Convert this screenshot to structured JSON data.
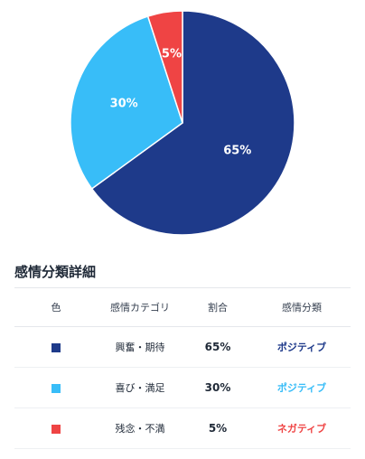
{
  "chart_data": {
    "type": "pie",
    "title": "",
    "slices": [
      {
        "label": "65%",
        "value": 65,
        "color": "#1e3a8a"
      },
      {
        "label": "30%",
        "value": 30,
        "color": "#38bdf8"
      },
      {
        "label": "5%",
        "value": 5,
        "color": "#ef4444"
      }
    ]
  },
  "table": {
    "title": "感情分類詳細",
    "headers": {
      "color": "色",
      "category": "感情カテゴリ",
      "ratio": "割合",
      "classification": "感情分類"
    },
    "rows": [
      {
        "color": "#1e3a8a",
        "category": "興奮・期待",
        "ratio": "65%",
        "classification": "ポジティブ",
        "class_color": "#1e3a8a"
      },
      {
        "color": "#38bdf8",
        "category": "喜び・満足",
        "ratio": "30%",
        "classification": "ポジティブ",
        "class_color": "#38bdf8"
      },
      {
        "color": "#ef4444",
        "category": "残念・不満",
        "ratio": "5%",
        "classification": "ネガティブ",
        "class_color": "#ef4444"
      }
    ]
  }
}
